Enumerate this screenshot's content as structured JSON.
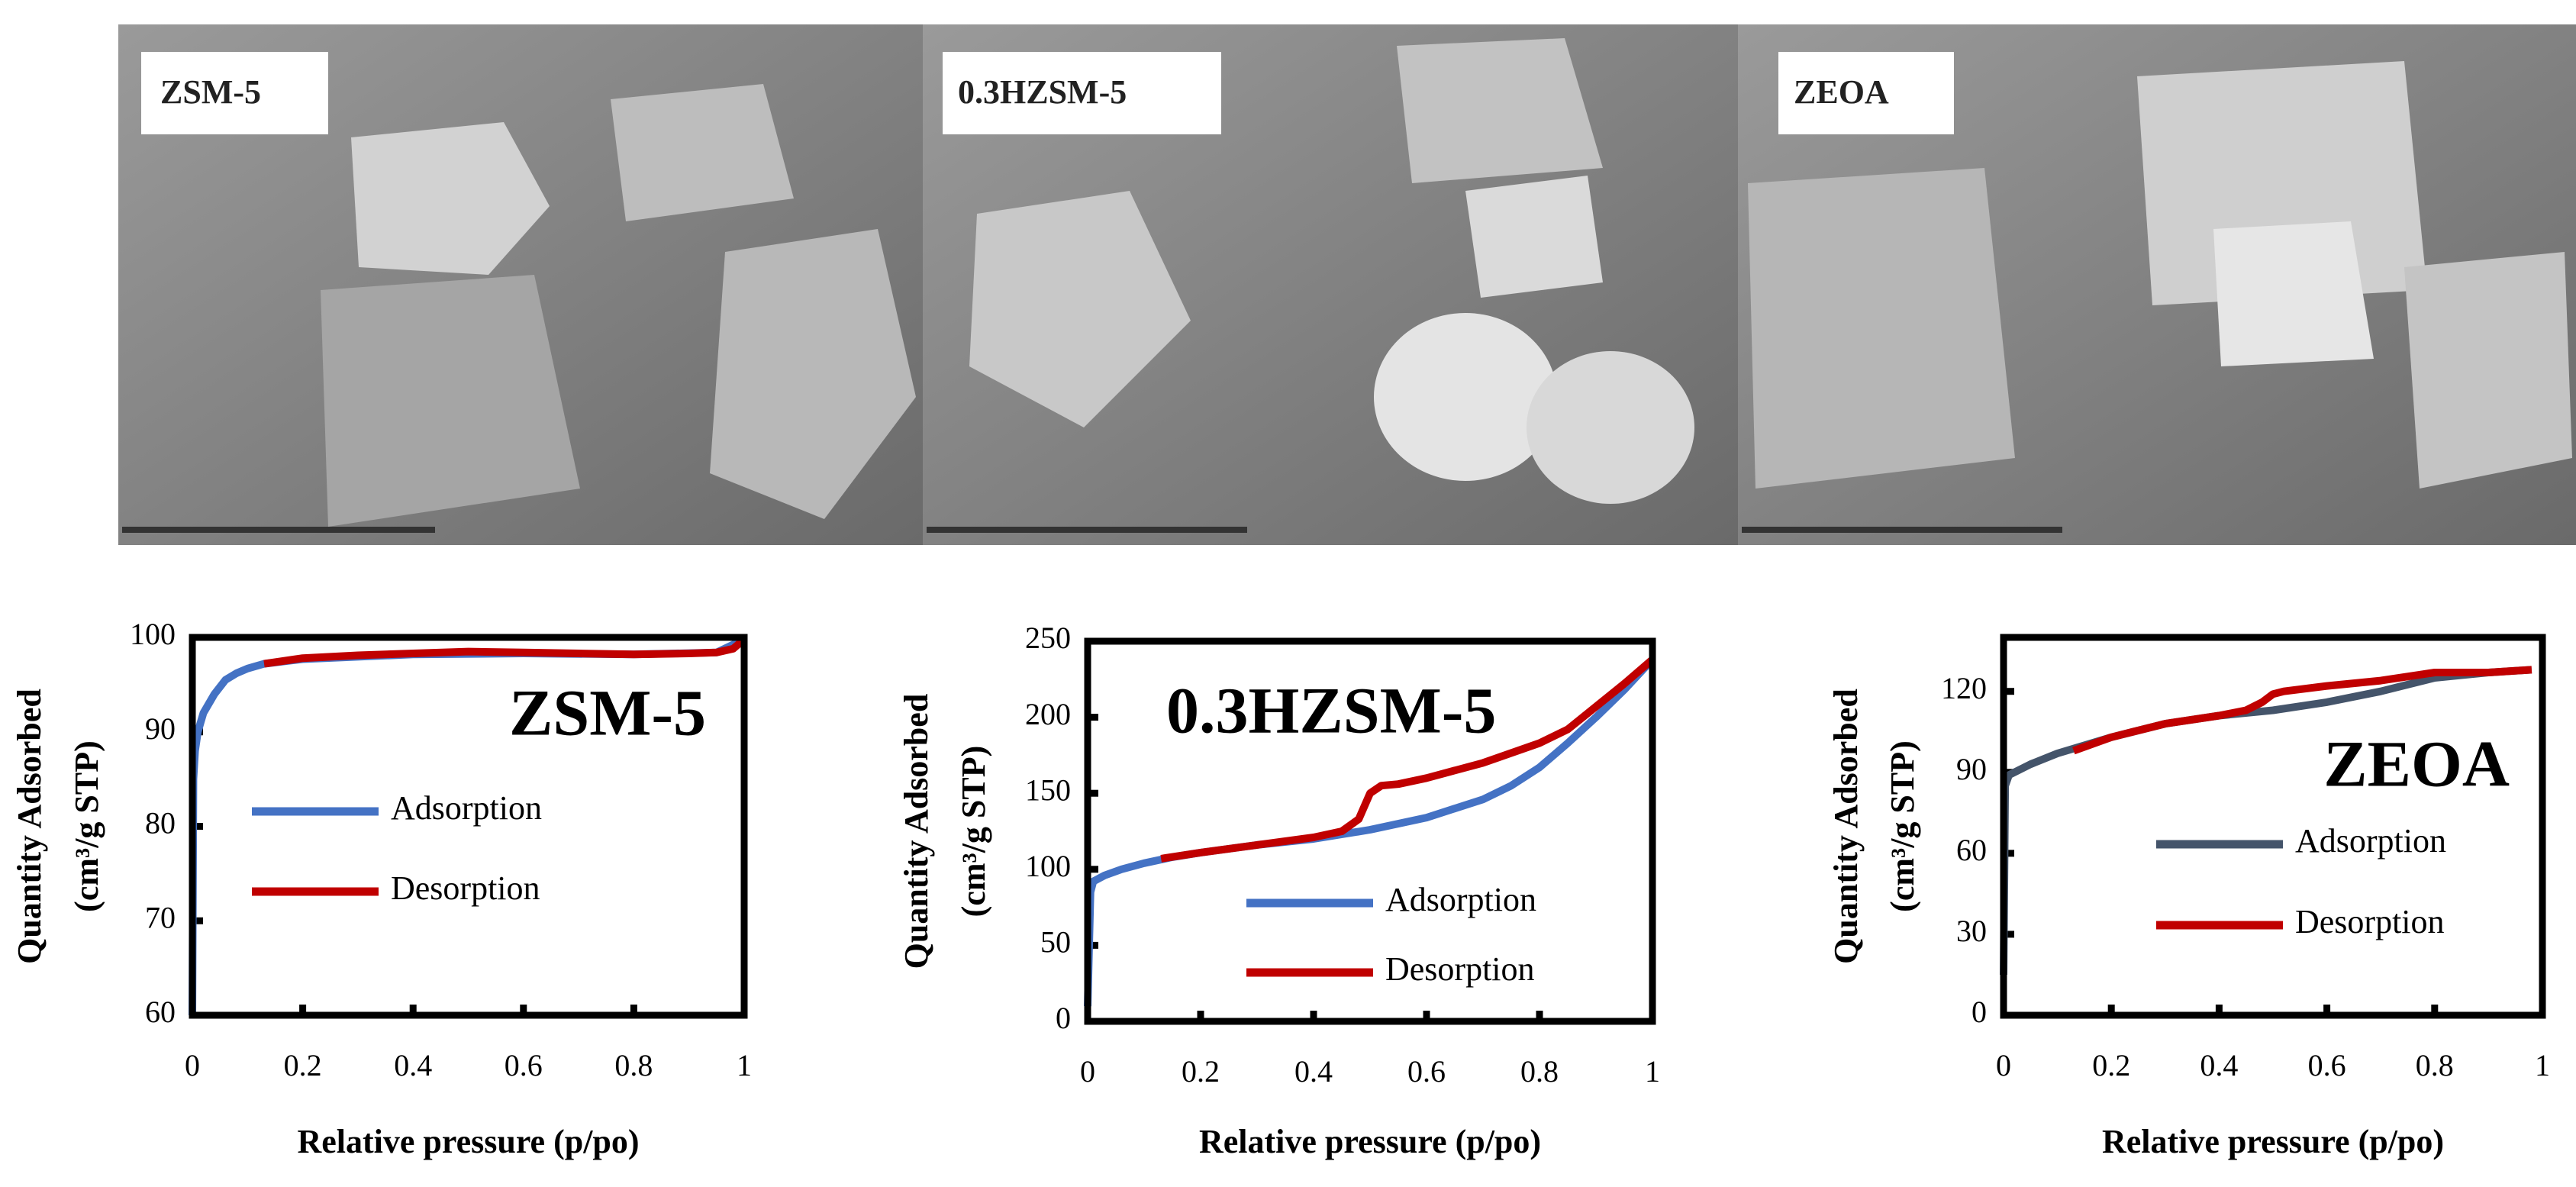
{
  "images": [
    {
      "label": "ZSM-5"
    },
    {
      "label": "0.3HZSM-5"
    },
    {
      "label": "ZEOA"
    }
  ],
  "chart_data": [
    {
      "type": "line",
      "annotation": "ZSM-5",
      "xlabel": "Relative pressure (p/po)",
      "ylabel": [
        "Quantity Adsorbed",
        "(cm³/g STP)"
      ],
      "xlim": [
        0,
        1
      ],
      "xticks": [
        0,
        0.2,
        0.4,
        0.6,
        0.8,
        1
      ],
      "ylim": [
        60,
        100
      ],
      "yticks": [
        60,
        70,
        80,
        90,
        100
      ],
      "grid": false,
      "series": [
        {
          "name": "Adsorption",
          "color": "#4472c4",
          "x": [
            0,
            0.002,
            0.005,
            0.01,
            0.02,
            0.04,
            0.06,
            0.08,
            0.1,
            0.13,
            0.2,
            0.4,
            0.6,
            0.8,
            0.95,
            1.0
          ],
          "values": [
            60,
            85,
            88,
            90,
            92,
            94,
            95.5,
            96.2,
            96.7,
            97.2,
            97.7,
            98.2,
            98.3,
            98.2,
            98.4,
            99.8
          ]
        },
        {
          "name": "Desorption",
          "color": "#c00000",
          "x": [
            0.13,
            0.2,
            0.3,
            0.4,
            0.5,
            0.6,
            0.7,
            0.8,
            0.9,
            0.95,
            0.98,
            1.0
          ],
          "values": [
            97.2,
            97.8,
            98.1,
            98.3,
            98.5,
            98.4,
            98.3,
            98.2,
            98.3,
            98.4,
            98.8,
            99.8
          ]
        }
      ]
    },
    {
      "type": "line",
      "annotation": "0.3HZSM-5",
      "xlabel": "Relative pressure (p/po)",
      "ylabel": [
        "Quantity Adsorbed",
        "(cm³/g STP)"
      ],
      "xlim": [
        0,
        1
      ],
      "xticks": [
        0,
        0.2,
        0.4,
        0.6,
        0.8,
        1
      ],
      "ylim": [
        0,
        250
      ],
      "yticks": [
        0,
        50,
        100,
        150,
        200,
        250
      ],
      "grid": false,
      "series": [
        {
          "name": "Adsorption",
          "color": "#4472c4",
          "x": [
            0,
            0.005,
            0.01,
            0.03,
            0.06,
            0.1,
            0.15,
            0.2,
            0.3,
            0.4,
            0.5,
            0.6,
            0.7,
            0.75,
            0.8,
            0.85,
            0.9,
            0.95,
            1.0
          ],
          "values": [
            10,
            85,
            92,
            96,
            100,
            104,
            108,
            111,
            116,
            120,
            126,
            134,
            146,
            155,
            167,
            183,
            200,
            218,
            238
          ]
        },
        {
          "name": "Desorption",
          "color": "#c00000",
          "x": [
            0.13,
            0.2,
            0.3,
            0.4,
            0.45,
            0.48,
            0.5,
            0.52,
            0.55,
            0.6,
            0.7,
            0.8,
            0.85,
            0.9,
            0.95,
            1.0
          ],
          "values": [
            107,
            111,
            116,
            121,
            125,
            133,
            150,
            155,
            156,
            160,
            170,
            183,
            192,
            207,
            222,
            238
          ]
        }
      ]
    },
    {
      "type": "line",
      "annotation": "ZEOA",
      "xlabel": "Relative pressure (p/po)",
      "ylabel": [
        "Quantity Adsorbed",
        "(cm³/g STP)"
      ],
      "xlim": [
        0,
        1
      ],
      "xticks": [
        0,
        0.2,
        0.4,
        0.6,
        0.8,
        1
      ],
      "ylim": [
        0,
        140
      ],
      "yticks": [
        0,
        30,
        60,
        90,
        120
      ],
      "grid": false,
      "series": [
        {
          "name": "Adsorption",
          "color": "#44546a",
          "x": [
            0,
            0.003,
            0.01,
            0.05,
            0.1,
            0.2,
            0.3,
            0.4,
            0.5,
            0.6,
            0.7,
            0.8,
            0.9,
            0.98
          ],
          "values": [
            15,
            85,
            89,
            93,
            97,
            103,
            108,
            111,
            113,
            116,
            120,
            125,
            127,
            128
          ]
        },
        {
          "name": "Desorption",
          "color": "#c00000",
          "x": [
            0.13,
            0.2,
            0.3,
            0.4,
            0.45,
            0.48,
            0.5,
            0.52,
            0.6,
            0.7,
            0.8,
            0.9,
            0.98
          ],
          "values": [
            98,
            103,
            108,
            111,
            113,
            116,
            119,
            120,
            122,
            124,
            127,
            127,
            128
          ]
        }
      ]
    }
  ]
}
